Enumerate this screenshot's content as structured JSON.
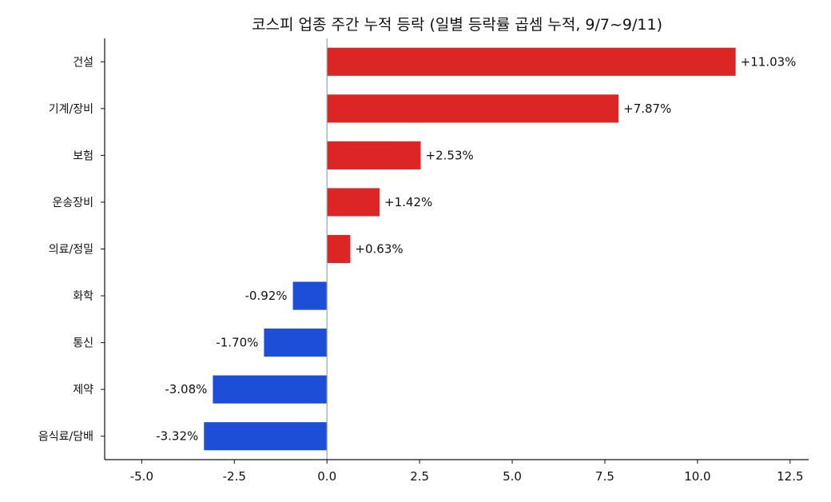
{
  "chart_data": {
    "type": "bar",
    "orientation": "horizontal",
    "title": "코스피 업종 주간 누적 등락 (일별 등락률 곱셈 누적, 9/7~9/11)",
    "xlabel": "",
    "ylabel": "",
    "categories": [
      "건설",
      "기계/장비",
      "보험",
      "운송장비",
      "의료/정밀",
      "화학",
      "통신",
      "제약",
      "음식료/담배"
    ],
    "values": [
      11.03,
      7.87,
      2.53,
      1.42,
      0.63,
      -0.92,
      -1.7,
      -3.08,
      -3.32
    ],
    "data_labels": [
      "+11.03%",
      "+7.87%",
      "+2.53%",
      "+1.42%",
      "+0.63%",
      "-0.92%",
      "-1.70%",
      "-3.08%",
      "-3.32%"
    ],
    "xlim": [
      -6.0,
      13.0
    ],
    "x_ticks": [
      -5.0,
      -2.5,
      0.0,
      2.5,
      5.0,
      7.5,
      10.0,
      12.5
    ],
    "x_tick_labels": [
      "-5.0",
      "-2.5",
      "0.0",
      "2.5",
      "5.0",
      "7.5",
      "10.0",
      "12.5"
    ],
    "grid": false,
    "legend": "none",
    "colors": {
      "positive": "#dc2626",
      "negative": "#1d4ed8",
      "zero_line": "#94a3b8",
      "axis": "#111111"
    }
  }
}
